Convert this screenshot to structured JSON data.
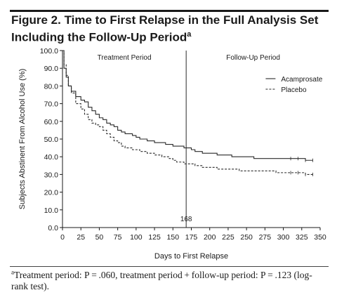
{
  "figure": {
    "title": "Figure 2. Time to First Relapse in the Full Analysis Set Including the Follow-Up Period",
    "title_marker": "a"
  },
  "footnote": {
    "marker": "a",
    "text": "Treatment period: P = .060, treatment period + follow-up period: P = .123 (log-rank test)."
  },
  "chart_data": {
    "type": "line",
    "xlabel": "Days to First Relapse",
    "ylabel": "Subjects Abstinent From Alcohol Use (%)",
    "xlim": [
      0,
      350
    ],
    "ylim": [
      0,
      100
    ],
    "x_ticks": [
      "0",
      "25",
      "50",
      "75",
      "100",
      "125",
      "150",
      "175",
      "200",
      "225",
      "250",
      "275",
      "300",
      "325",
      "350"
    ],
    "y_ticks": [
      "0.0",
      "10.0",
      "20.0",
      "30.0",
      "40.0",
      "50.0",
      "60.0",
      "70.0",
      "80.0",
      "90.0",
      "100.0"
    ],
    "grid": false,
    "legend_position": "top-right",
    "period_labels": {
      "treatment": "Treatment Period",
      "followup": "Follow-Up Period"
    },
    "divider": {
      "x": 168,
      "label": "168"
    },
    "series": [
      {
        "name": "Acamprosate",
        "style": "solid",
        "color": "#2a2a2a",
        "points": [
          [
            0,
            100
          ],
          [
            2,
            90
          ],
          [
            5,
            85
          ],
          [
            8,
            80
          ],
          [
            12,
            77
          ],
          [
            18,
            74
          ],
          [
            25,
            72
          ],
          [
            30,
            71
          ],
          [
            35,
            68
          ],
          [
            40,
            66
          ],
          [
            45,
            64
          ],
          [
            50,
            62
          ],
          [
            55,
            61
          ],
          [
            60,
            59
          ],
          [
            65,
            58
          ],
          [
            70,
            57
          ],
          [
            75,
            55
          ],
          [
            80,
            54
          ],
          [
            85,
            53
          ],
          [
            90,
            53
          ],
          [
            95,
            52
          ],
          [
            100,
            51
          ],
          [
            105,
            50
          ],
          [
            110,
            50
          ],
          [
            115,
            49
          ],
          [
            120,
            49
          ],
          [
            125,
            48
          ],
          [
            130,
            48
          ],
          [
            135,
            48
          ],
          [
            140,
            47
          ],
          [
            145,
            47
          ],
          [
            150,
            46
          ],
          [
            155,
            46
          ],
          [
            160,
            46
          ],
          [
            165,
            45
          ],
          [
            168,
            45
          ],
          [
            175,
            44
          ],
          [
            180,
            43
          ],
          [
            190,
            42
          ],
          [
            200,
            42
          ],
          [
            210,
            41
          ],
          [
            220,
            41
          ],
          [
            230,
            40
          ],
          [
            240,
            40
          ],
          [
            250,
            40
          ],
          [
            260,
            39
          ],
          [
            270,
            39
          ],
          [
            280,
            39
          ],
          [
            290,
            39
          ],
          [
            300,
            39
          ],
          [
            310,
            39
          ],
          [
            320,
            39
          ],
          [
            330,
            38
          ],
          [
            340,
            38
          ]
        ]
      },
      {
        "name": "Placebo",
        "style": "dashed",
        "color": "#2a2a2a",
        "points": [
          [
            0,
            100
          ],
          [
            2,
            92
          ],
          [
            5,
            86
          ],
          [
            8,
            80
          ],
          [
            12,
            76
          ],
          [
            18,
            70
          ],
          [
            25,
            67
          ],
          [
            30,
            64
          ],
          [
            35,
            61
          ],
          [
            40,
            59
          ],
          [
            45,
            58
          ],
          [
            50,
            57
          ],
          [
            55,
            55
          ],
          [
            60,
            53
          ],
          [
            65,
            51
          ],
          [
            70,
            49
          ],
          [
            75,
            48
          ],
          [
            80,
            46
          ],
          [
            85,
            45
          ],
          [
            90,
            45
          ],
          [
            95,
            44
          ],
          [
            100,
            44
          ],
          [
            105,
            43
          ],
          [
            110,
            43
          ],
          [
            115,
            42
          ],
          [
            120,
            42
          ],
          [
            125,
            41
          ],
          [
            130,
            41
          ],
          [
            135,
            40
          ],
          [
            140,
            40
          ],
          [
            145,
            39
          ],
          [
            150,
            38
          ],
          [
            155,
            37
          ],
          [
            160,
            37
          ],
          [
            165,
            36
          ],
          [
            168,
            36
          ],
          [
            175,
            36
          ],
          [
            180,
            35
          ],
          [
            190,
            34
          ],
          [
            200,
            34
          ],
          [
            210,
            33
          ],
          [
            220,
            33
          ],
          [
            230,
            33
          ],
          [
            240,
            32
          ],
          [
            250,
            32
          ],
          [
            260,
            32
          ],
          [
            270,
            32
          ],
          [
            280,
            32
          ],
          [
            290,
            31
          ],
          [
            300,
            31
          ],
          [
            310,
            31
          ],
          [
            320,
            31
          ],
          [
            330,
            30
          ],
          [
            340,
            30
          ]
        ]
      }
    ]
  }
}
